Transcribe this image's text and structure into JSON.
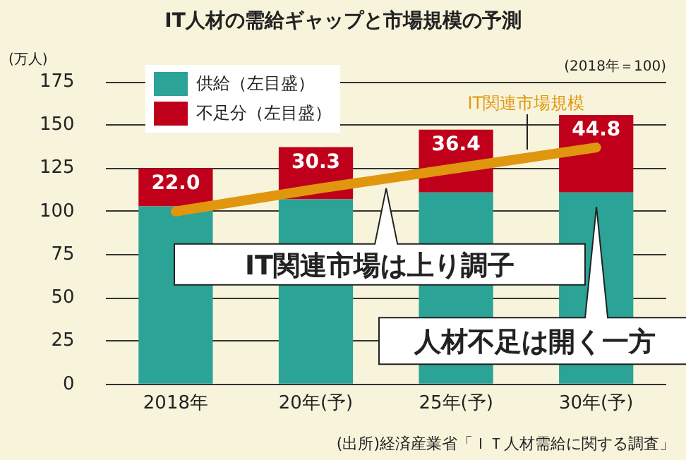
{
  "chart_data": {
    "type": "bar",
    "title": "IT人材の需給ギャップと市場規模の予測",
    "ylabel": "(万人)",
    "stacked": true,
    "categories": [
      "2018年",
      "20年(予)",
      "25年(予)",
      "30年(予)"
    ],
    "series": [
      {
        "name": "供給（左目盛）",
        "color": "#2ba397",
        "values": [
          103,
          107,
          111,
          111
        ]
      },
      {
        "name": "不足分（左目盛）",
        "color": "#c0001a",
        "values": [
          22.0,
          30.3,
          36.4,
          44.8
        ],
        "value_labels": [
          "22.0",
          "30.3",
          "36.4",
          "44.8"
        ]
      },
      {
        "name": "IT関連市場規模",
        "type": "line",
        "color": "#e0960e",
        "values": [
          100,
          113,
          125,
          137
        ],
        "marker": "none"
      }
    ],
    "ylim": [
      0,
      175
    ],
    "yticks": [
      0,
      25,
      50,
      75,
      100,
      125,
      150,
      175
    ],
    "grid": "y",
    "legend": "top left",
    "annotations": [
      "(2018年＝100)",
      "IT関連市場は上り調子",
      "人材不足は開く一方",
      "(出所)経済産業省「ＩＴ人材需給に関する調査」"
    ]
  }
}
